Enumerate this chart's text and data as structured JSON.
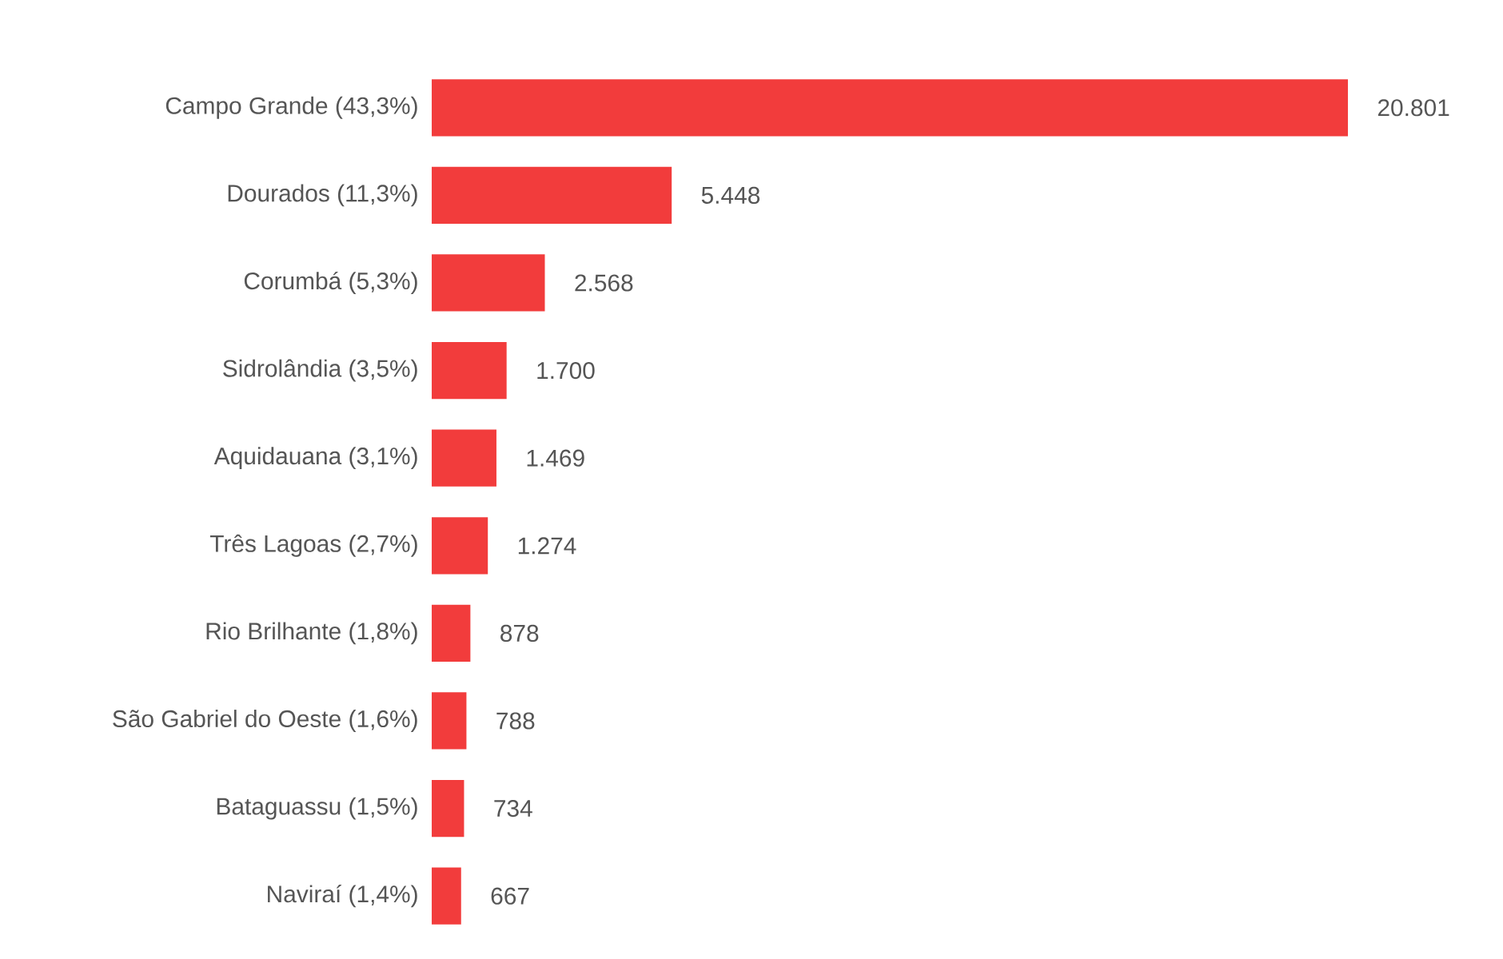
{
  "chart_data": {
    "type": "bar",
    "orientation": "horizontal",
    "color": "#f23c3c",
    "categories": [
      "Campo Grande (43,3%)",
      "Dourados (11,3%)",
      "Corumbá (5,3%)",
      "Sidrolândia (3,5%)",
      "Aquidauana (3,1%)",
      "Três Lagoas (2,7%)",
      "Rio Brilhante (1,8%)",
      "São Gabriel do Oeste (1,6%)",
      "Bataguassu (1,5%)",
      "Naviraí (1,4%)"
    ],
    "values": [
      20801,
      5448,
      2568,
      1700,
      1469,
      1274,
      878,
      788,
      734,
      667
    ],
    "value_labels": [
      "20.801",
      "5.448",
      "2.568",
      "1.700",
      "1.469",
      "1.274",
      "878",
      "788",
      "734",
      "667"
    ]
  }
}
